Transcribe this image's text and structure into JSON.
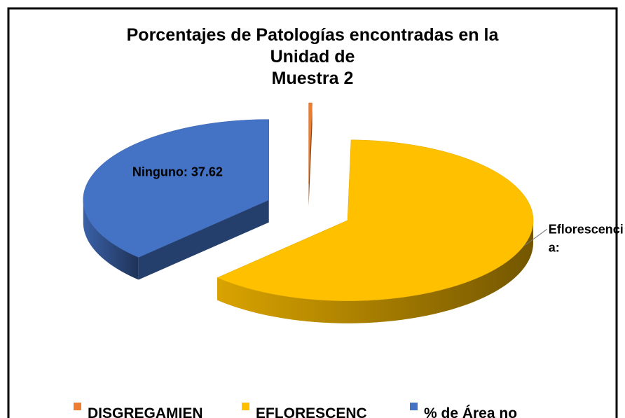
{
  "chart_data": {
    "type": "pie",
    "title": [
      "Porcentajes de Patologías encontradas en la",
      "Unidad de",
      "Muestra 2"
    ],
    "categories": [
      "DISGREGAMIEN",
      "EFLORESCENC",
      "% de Área no"
    ],
    "values": [
      0.3,
      62.08,
      37.62
    ],
    "value_labels": [
      null,
      "Eflorescenci a:",
      "Ninguno: 37.62"
    ],
    "colors": [
      "#ed7d31",
      "#ffc000",
      "#4472c4"
    ],
    "exploded": true,
    "three_d": true,
    "legend": "bottom"
  }
}
